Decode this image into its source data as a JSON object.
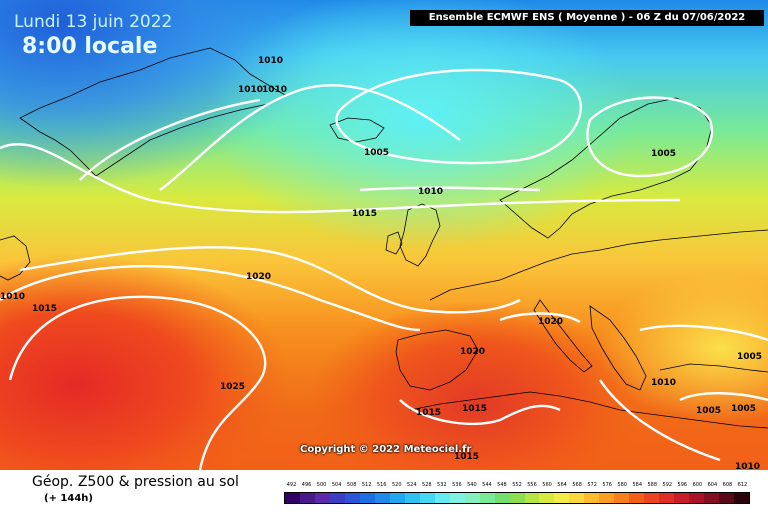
{
  "header": {
    "date": "Lundi 13 juin 2022",
    "time": "8:00 locale",
    "model": "Ensemble ECMWF ENS  ( Moyenne )  -  06 Z du 07/06/2022"
  },
  "map": {
    "copyright": "Copyright © 2022 Meteociel.fr",
    "isobars": [
      "1010",
      "1010",
      "1010",
      "1005",
      "1005",
      "1010",
      "1015",
      "1020",
      "1010",
      "1015",
      "1020",
      "1020",
      "1025",
      "1015",
      "1015",
      "1015",
      "1005",
      "1010",
      "1005",
      "1005",
      "1010"
    ]
  },
  "legend": {
    "title": "Géop. Z500 & pression au sol",
    "forecast": "(+ 144h)",
    "scale_values": [
      "492",
      "496",
      "500",
      "504",
      "508",
      "512",
      "516",
      "520",
      "524",
      "528",
      "532",
      "536",
      "540",
      "544",
      "548",
      "552",
      "556",
      "560",
      "564",
      "568",
      "572",
      "576",
      "580",
      "584",
      "588",
      "592",
      "596",
      "600",
      "604",
      "608",
      "612"
    ],
    "scale_colors": [
      "#330066",
      "#4b1a8a",
      "#5c2aa8",
      "#3d3dc4",
      "#2b55d6",
      "#1f6fe3",
      "#1f8ae8",
      "#22a6ee",
      "#2ec2f2",
      "#45d8f4",
      "#66ebf5",
      "#7ef2e0",
      "#83f0bd",
      "#7aea96",
      "#72e070",
      "#8ade50",
      "#b4e544",
      "#d8ea40",
      "#f2ec4a",
      "#fbd83e",
      "#fdbb2e",
      "#fb9e22",
      "#f7801c",
      "#f26018",
      "#ea4420",
      "#e02d28",
      "#c81e2a",
      "#a81426",
      "#821020",
      "#5a0a16",
      "#2a0408"
    ]
  }
}
